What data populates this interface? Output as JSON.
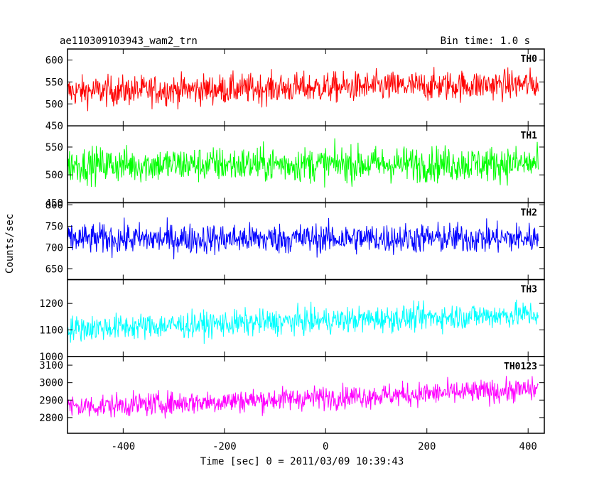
{
  "header": {
    "title": "ae110309103943_wam2_trn",
    "bin_time": "Bin time: 1.0 s"
  },
  "chart_data": {
    "type": "line",
    "title": "ae110309103943_wam2_trn",
    "subtitle": "Bin time: 1.0 s",
    "xlabel": "Time [sec] 0 = 2011/03/09 10:39:43",
    "ylabel": "Counts/sec",
    "xlim": [
      -510,
      432
    ],
    "x_ticks": [
      -400,
      -200,
      0,
      200,
      400
    ],
    "x_start": -510,
    "x_end": 420,
    "x_step": 1,
    "grid": false,
    "panels": [
      {
        "name": "TH0",
        "color": "#ff0000",
        "ylim": [
          450,
          625
        ],
        "y_ticks": [
          450,
          500,
          550,
          600
        ],
        "mean_start": 528,
        "mean_end": 545,
        "noise": 28
      },
      {
        "name": "TH1",
        "color": "#00ff00",
        "ylim": [
          450,
          588
        ],
        "y_ticks": [
          450,
          500,
          550
        ],
        "mean_start": 518,
        "mean_end": 520,
        "noise": 26
      },
      {
        "name": "TH2",
        "color": "#0000ff",
        "ylim": [
          625,
          805
        ],
        "y_ticks": [
          650,
          700,
          750,
          800
        ],
        "mean_start": 720,
        "mean_end": 722,
        "noise": 29
      },
      {
        "name": "TH3",
        "color": "#00ffff",
        "ylim": [
          1000,
          1290
        ],
        "y_ticks": [
          1000,
          1100,
          1200
        ],
        "mean_start": 1105,
        "mean_end": 1160,
        "noise": 40
      },
      {
        "name": "TH0123",
        "color": "#ff00ff",
        "ylim": [
          2710,
          3150
        ],
        "y_ticks": [
          2800,
          2900,
          3000,
          3100
        ],
        "mean_start": 2860,
        "mean_end": 2960,
        "noise": 55
      }
    ]
  }
}
